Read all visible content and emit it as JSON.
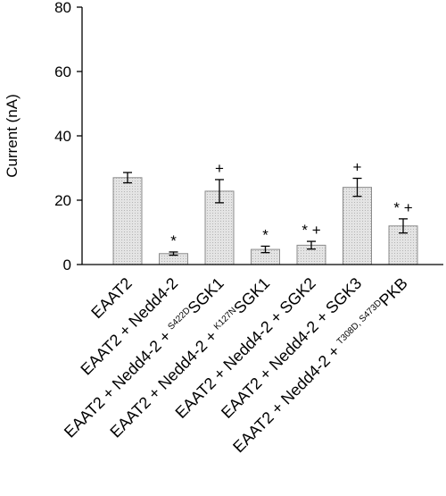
{
  "chart_data": {
    "type": "bar",
    "title": "",
    "xlabel": "",
    "ylabel": "Current (nA)",
    "ylim": [
      0,
      80
    ],
    "yticks": [
      0,
      20,
      40,
      60,
      80
    ],
    "grid": false,
    "categories": [
      {
        "pre": "EAAT2",
        "sup": "",
        "post": ""
      },
      {
        "pre": "EAAT2 + Nedd4-2",
        "sup": "",
        "post": ""
      },
      {
        "pre": "EAAT2 + Nedd4-2 + ",
        "sup": "S422D",
        "post": "SGK1"
      },
      {
        "pre": "EAAT2 + Nedd4-2 + ",
        "sup": "K127N",
        "post": "SGK1"
      },
      {
        "pre": "EAAT2 + Nedd4-2 + SGK2",
        "sup": "",
        "post": ""
      },
      {
        "pre": "EAAT2 + Nedd4-2 + SGK3",
        "sup": "",
        "post": ""
      },
      {
        "pre": "EAAT2 + Nedd4-2 + ",
        "sup": "T308D, S473D",
        "post": "PKB"
      }
    ],
    "values": [
      27,
      3.4,
      22.8,
      4.7,
      6,
      24,
      12
    ],
    "errors": [
      1.6,
      0.5,
      3.6,
      1,
      1.2,
      2.8,
      2.2
    ],
    "markers": [
      "",
      "*",
      "+",
      "*",
      "* +",
      "+",
      "* +"
    ],
    "colors": {
      "bar_fill": "#d9d9d9",
      "bar_stroke": "#8c8c8c",
      "axis": "#000000"
    }
  }
}
